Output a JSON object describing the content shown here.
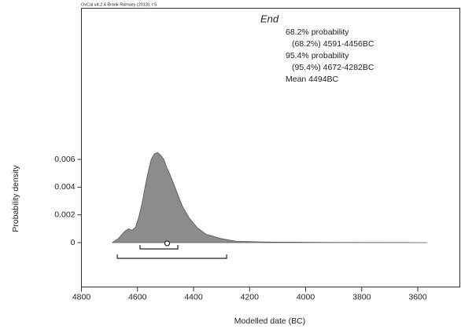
{
  "chart_data": {
    "type": "area",
    "header": "OxCal v4.2.4 Bronk Ramsey (2013); r:5",
    "title": "End",
    "annotations": [
      "68.2% probability",
      "(68.2%) 4591-4456BC",
      "95.4% probability",
      "(95.4%) 4672-4282BC",
      "Mean 4494BC"
    ],
    "xlabel": "Modelled date (BC)",
    "ylabel": "Probability density",
    "x": [
      4690,
      4668,
      4646,
      4632,
      4619,
      4607,
      4596,
      4584,
      4573,
      4562,
      4551,
      4540,
      4528,
      4517,
      4506,
      4495,
      4484,
      4472,
      4455,
      4439,
      4416,
      4388,
      4355,
      4304,
      4248,
      4136,
      3900,
      3568
    ],
    "values": [
      0,
      0.0003,
      0.0008,
      0.001,
      0.0009,
      0.0011,
      0.0018,
      0.0028,
      0.004,
      0.0051,
      0.006,
      0.0064,
      0.0065,
      0.0063,
      0.006,
      0.0054,
      0.0049,
      0.0043,
      0.0034,
      0.0026,
      0.0018,
      0.0011,
      0.0006,
      0.0003,
      0.0001,
      4e-05,
      1e-05,
      0
    ],
    "color": "#8c8c8c",
    "intervals": [
      {
        "from": 4591,
        "to": 4456
      },
      {
        "from": 4672,
        "to": 4282
      }
    ],
    "mean": 4494,
    "xlim": [
      4800,
      3450
    ],
    "xticks": [
      4800,
      4600,
      4400,
      4200,
      4000,
      3800,
      3600
    ],
    "ylim": [
      -0.0032,
      0.0169
    ],
    "yticks": [
      0,
      0.002,
      0.004,
      0.006
    ]
  }
}
